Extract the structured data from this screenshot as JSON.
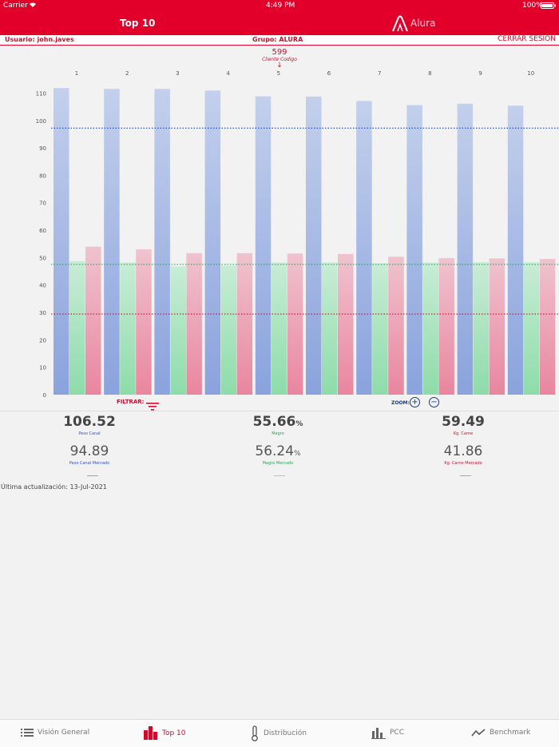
{
  "status_bar": {
    "carrier": "Carrier",
    "time": "4:49 PM",
    "battery": "100%"
  },
  "nav": {
    "title": "Top 10",
    "logo_text": "Alura"
  },
  "info": {
    "user": "Usuario: john.javes",
    "group": "Grupo: ALURA",
    "logout": "CERRAR SESIÓN"
  },
  "selected": {
    "code": "599",
    "label": "Cliente Codigo"
  },
  "chart_data": {
    "type": "bar",
    "categories": [
      "1",
      "2",
      "3",
      "4",
      "5",
      "6",
      "7",
      "8",
      "9",
      "10"
    ],
    "series": [
      {
        "name": "Peso Canal",
        "color": "#8aa3dd",
        "values": [
          111.8,
          111.5,
          111.5,
          110.9,
          108.8,
          108.7,
          107.1,
          105.6,
          106.1,
          105.4
        ]
      },
      {
        "name": "Magro",
        "color": "#8ddca9",
        "values": [
          48.7,
          48.2,
          46.8,
          47.1,
          48.2,
          48.2,
          47.9,
          48.2,
          48.3,
          48.3
        ]
      },
      {
        "name": "Kg. Carne",
        "color": "#e9869f",
        "values": [
          54.0,
          53.0,
          51.6,
          51.6,
          51.5,
          51.3,
          50.3,
          49.8,
          49.7,
          49.5
        ]
      }
    ],
    "reference_lines": [
      {
        "name": "Peso Canal Mercado",
        "value": 97.2,
        "color": "#2f55c9"
      },
      {
        "name": "Magro Mercado",
        "value": 47.5,
        "color": "#2fa35e"
      },
      {
        "name": "Kg. Carne Mercado",
        "value": 29.4,
        "color": "#c8102e"
      }
    ],
    "yticks": [
      0,
      10,
      20,
      30,
      40,
      50,
      60,
      70,
      80,
      90,
      100,
      110
    ],
    "ylim": [
      0,
      114
    ]
  },
  "controls": {
    "filter_label": "FILTRAR:",
    "zoom_label": "ZOOM:",
    "zoom_in": "+",
    "zoom_out": "−"
  },
  "metrics": [
    {
      "value": "106.52",
      "unit": "",
      "label": "Peso Canal",
      "market_value": "94.89",
      "market_label": "Peso Canal Mercado",
      "color": "#2f55c9"
    },
    {
      "value": "55.66",
      "unit": "%",
      "label": "Magro",
      "market_value": "56.24",
      "market_label": "Magro Mercado",
      "color": "#2fa35e"
    },
    {
      "value": "59.49",
      "unit": "",
      "label": "Kg. Carne",
      "market_value": "41.86",
      "market_label": "Kg. Carne Mercado",
      "color": "#c8102e"
    }
  ],
  "last_update": "Última actualización: 13-Jul-2021",
  "tabs": [
    {
      "label": "Visión General",
      "icon": "list-icon"
    },
    {
      "label": "Top 10",
      "icon": "bars-icon"
    },
    {
      "label": "Distribución",
      "icon": "thermometer-icon"
    },
    {
      "label": "PCC",
      "icon": "bar-chart-icon"
    },
    {
      "label": "Benchmark",
      "icon": "trend-icon"
    }
  ]
}
